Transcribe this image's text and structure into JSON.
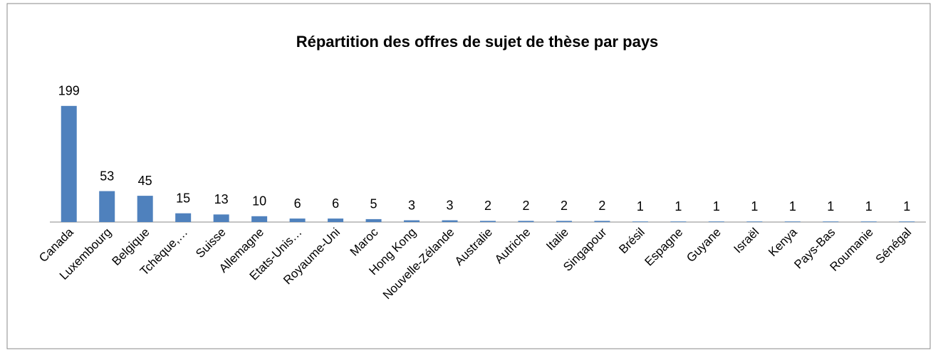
{
  "chart_data": {
    "type": "bar",
    "title": "Répartition des offres de sujet de thèse par pays",
    "categories": [
      "Canada",
      "Luxembourg",
      "Belgique",
      "Tchèque,…",
      "Suisse",
      "Allemagne",
      "Etats-Unis…",
      "Royaume-Uni",
      "Maroc",
      "Hong Kong",
      "Nouvelle-Zélande",
      "Australie",
      "Autriche",
      "Italie",
      "Singapour",
      "Brésil",
      "Espagne",
      "Guyane",
      "Israël",
      "Kenya",
      "Pays-Bas",
      "Roumanie",
      "Sénégal"
    ],
    "values": [
      199,
      53,
      45,
      15,
      13,
      10,
      6,
      6,
      5,
      3,
      3,
      2,
      2,
      2,
      2,
      1,
      1,
      1,
      1,
      1,
      1,
      1,
      1
    ],
    "color": "#4f81bd",
    "ylim": [
      0,
      250
    ]
  }
}
